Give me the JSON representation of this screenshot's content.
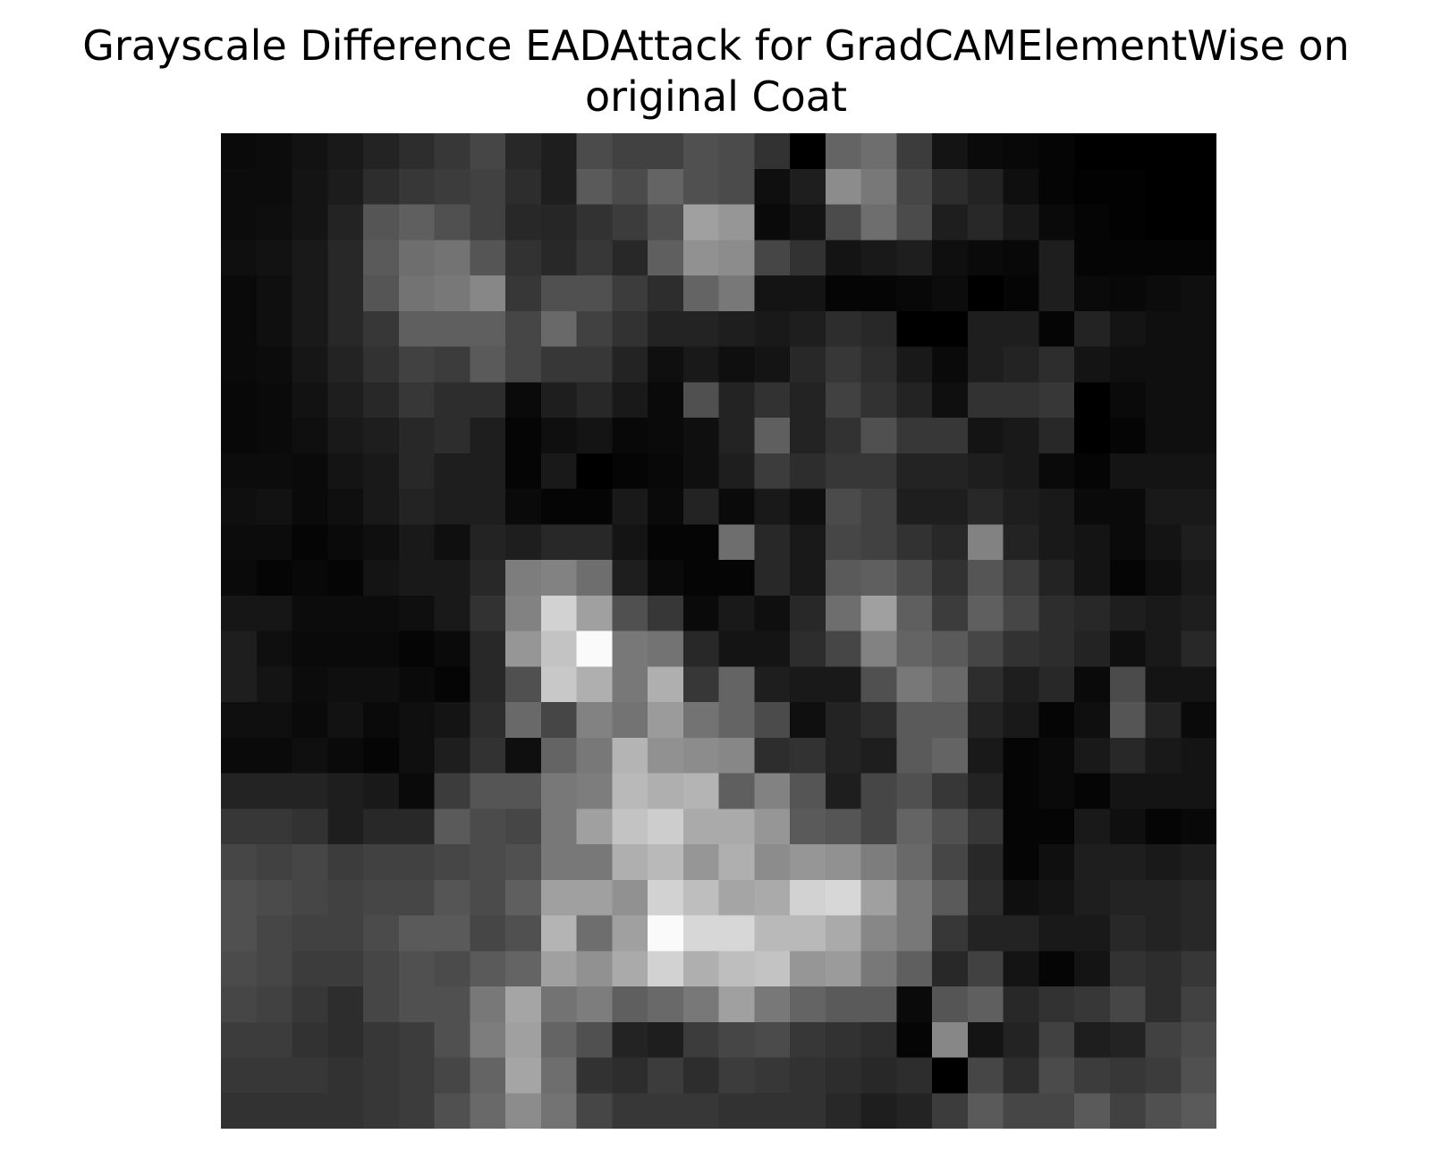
{
  "chart_data": {
    "type": "heatmap",
    "title_lines": [
      "Grayscale Difference EADAttack for GradCAMElementWise on",
      "original Coat"
    ],
    "xlabel": "",
    "ylabel": "",
    "axes_visible": false,
    "grid": false,
    "colormap": "gray",
    "value_range": [
      0,
      255
    ],
    "rows": 28,
    "cols": 28,
    "values": [
      [
        10,
        12,
        18,
        25,
        35,
        45,
        55,
        70,
        40,
        30,
        75,
        65,
        65,
        80,
        75,
        50,
        0,
        100,
        110,
        60,
        20,
        10,
        8,
        5,
        0,
        0,
        0,
        0
      ],
      [
        12,
        12,
        20,
        28,
        45,
        55,
        60,
        65,
        45,
        30,
        90,
        75,
        100,
        80,
        75,
        15,
        30,
        140,
        120,
        70,
        45,
        35,
        15,
        5,
        2,
        2,
        0,
        0
      ],
      [
        12,
        14,
        20,
        35,
        85,
        95,
        80,
        65,
        40,
        38,
        50,
        60,
        80,
        160,
        150,
        10,
        20,
        75,
        110,
        75,
        30,
        40,
        25,
        10,
        5,
        2,
        0,
        0
      ],
      [
        15,
        18,
        25,
        40,
        90,
        110,
        115,
        85,
        50,
        40,
        55,
        40,
        95,
        145,
        140,
        70,
        50,
        20,
        25,
        30,
        15,
        10,
        8,
        30,
        5,
        5,
        5,
        5
      ],
      [
        10,
        15,
        25,
        40,
        85,
        115,
        120,
        135,
        55,
        80,
        80,
        60,
        45,
        100,
        120,
        20,
        20,
        5,
        5,
        8,
        12,
        0,
        5,
        30,
        10,
        8,
        12,
        15
      ],
      [
        10,
        15,
        25,
        40,
        55,
        95,
        95,
        95,
        70,
        105,
        65,
        50,
        35,
        35,
        30,
        25,
        30,
        45,
        40,
        0,
        0,
        30,
        30,
        5,
        35,
        20,
        15,
        15
      ],
      [
        10,
        12,
        22,
        35,
        50,
        65,
        60,
        90,
        70,
        55,
        55,
        35,
        15,
        25,
        15,
        20,
        40,
        55,
        45,
        25,
        10,
        30,
        35,
        45,
        20,
        15,
        15,
        15
      ],
      [
        8,
        10,
        18,
        30,
        40,
        55,
        45,
        45,
        10,
        30,
        40,
        25,
        10,
        80,
        35,
        50,
        35,
        65,
        50,
        35,
        15,
        50,
        50,
        55,
        0,
        10,
        15,
        15
      ],
      [
        8,
        10,
        15,
        25,
        30,
        40,
        45,
        30,
        5,
        15,
        20,
        8,
        10,
        15,
        35,
        95,
        35,
        50,
        80,
        55,
        55,
        20,
        25,
        40,
        0,
        5,
        15,
        15
      ],
      [
        12,
        12,
        10,
        20,
        25,
        40,
        30,
        30,
        5,
        25,
        0,
        5,
        8,
        15,
        30,
        60,
        45,
        55,
        55,
        35,
        35,
        30,
        25,
        10,
        5,
        20,
        20,
        20
      ],
      [
        15,
        18,
        10,
        15,
        25,
        35,
        30,
        30,
        10,
        5,
        5,
        25,
        10,
        35,
        10,
        25,
        15,
        75,
        65,
        30,
        30,
        40,
        30,
        25,
        10,
        10,
        25,
        25
      ],
      [
        12,
        12,
        5,
        10,
        15,
        25,
        15,
        35,
        30,
        40,
        40,
        20,
        5,
        5,
        110,
        40,
        25,
        70,
        65,
        50,
        40,
        130,
        35,
        25,
        20,
        10,
        20,
        30
      ],
      [
        10,
        5,
        8,
        5,
        20,
        25,
        25,
        40,
        125,
        130,
        110,
        30,
        10,
        5,
        5,
        40,
        25,
        90,
        95,
        75,
        50,
        85,
        60,
        35,
        20,
        5,
        15,
        25
      ],
      [
        22,
        22,
        12,
        12,
        12,
        15,
        25,
        50,
        130,
        210,
        160,
        80,
        55,
        10,
        25,
        15,
        40,
        110,
        160,
        95,
        60,
        95,
        70,
        45,
        40,
        30,
        25,
        30
      ],
      [
        30,
        15,
        10,
        10,
        10,
        5,
        10,
        40,
        150,
        195,
        250,
        120,
        115,
        40,
        20,
        20,
        45,
        70,
        130,
        100,
        90,
        70,
        50,
        45,
        35,
        15,
        25,
        40
      ],
      [
        30,
        20,
        12,
        15,
        15,
        10,
        5,
        40,
        80,
        200,
        175,
        120,
        175,
        55,
        100,
        30,
        25,
        25,
        80,
        120,
        105,
        45,
        30,
        40,
        10,
        75,
        20,
        20
      ],
      [
        15,
        15,
        10,
        18,
        10,
        15,
        20,
        45,
        105,
        70,
        130,
        115,
        155,
        115,
        100,
        75,
        15,
        35,
        45,
        90,
        90,
        35,
        25,
        5,
        15,
        85,
        35,
        10
      ],
      [
        10,
        10,
        15,
        10,
        5,
        15,
        30,
        50,
        15,
        100,
        120,
        180,
        145,
        140,
        135,
        45,
        50,
        35,
        30,
        90,
        100,
        25,
        5,
        10,
        25,
        40,
        25,
        20
      ],
      [
        35,
        35,
        35,
        30,
        25,
        10,
        60,
        85,
        85,
        120,
        125,
        185,
        175,
        180,
        95,
        130,
        85,
        30,
        70,
        80,
        55,
        35,
        5,
        10,
        5,
        20,
        20,
        20
      ],
      [
        55,
        55,
        50,
        30,
        40,
        40,
        90,
        75,
        70,
        120,
        160,
        195,
        205,
        170,
        170,
        150,
        90,
        85,
        70,
        100,
        80,
        55,
        5,
        5,
        25,
        15,
        5,
        8
      ],
      [
        70,
        65,
        70,
        60,
        65,
        65,
        70,
        75,
        80,
        120,
        120,
        175,
        185,
        150,
        175,
        140,
        150,
        145,
        125,
        105,
        70,
        40,
        5,
        15,
        30,
        30,
        25,
        30
      ],
      [
        80,
        75,
        70,
        65,
        70,
        70,
        85,
        75,
        95,
        160,
        160,
        145,
        210,
        190,
        165,
        170,
        210,
        215,
        160,
        120,
        90,
        45,
        15,
        20,
        30,
        35,
        35,
        40
      ],
      [
        80,
        70,
        65,
        65,
        75,
        90,
        90,
        70,
        80,
        180,
        110,
        160,
        250,
        215,
        215,
        185,
        185,
        170,
        135,
        120,
        55,
        35,
        35,
        25,
        25,
        40,
        35,
        40
      ],
      [
        75,
        70,
        60,
        60,
        70,
        80,
        75,
        90,
        100,
        160,
        145,
        170,
        210,
        175,
        190,
        195,
        150,
        155,
        120,
        95,
        40,
        65,
        20,
        5,
        20,
        50,
        45,
        55
      ],
      [
        70,
        65,
        55,
        45,
        70,
        80,
        80,
        120,
        165,
        115,
        125,
        95,
        105,
        120,
        160,
        120,
        100,
        90,
        90,
        10,
        85,
        95,
        40,
        50,
        55,
        70,
        45,
        65
      ],
      [
        60,
        60,
        50,
        45,
        55,
        60,
        80,
        125,
        160,
        100,
        80,
        35,
        30,
        60,
        70,
        75,
        55,
        50,
        45,
        5,
        135,
        20,
        35,
        65,
        30,
        35,
        65,
        75
      ],
      [
        55,
        55,
        55,
        50,
        55,
        60,
        70,
        100,
        165,
        110,
        50,
        45,
        60,
        45,
        60,
        55,
        50,
        45,
        40,
        45,
        0,
        70,
        45,
        75,
        60,
        55,
        60,
        80
      ],
      [
        50,
        50,
        50,
        50,
        55,
        60,
        80,
        105,
        140,
        115,
        70,
        55,
        55,
        55,
        50,
        50,
        50,
        40,
        30,
        35,
        60,
        90,
        70,
        70,
        90,
        65,
        80,
        90
      ]
    ]
  }
}
